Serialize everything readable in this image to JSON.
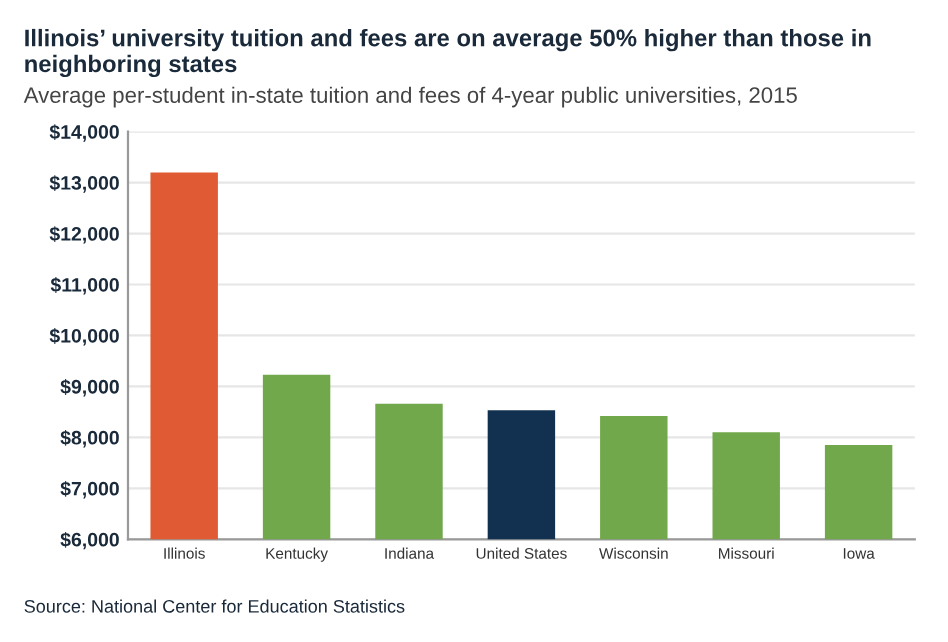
{
  "chart_data": {
    "type": "bar",
    "title": "Illinois’ university tuition and fees are on average 50% higher than those in neighboring states",
    "subtitle": "Average per-student in-state tuition and fees of 4-year public universities, 2015",
    "categories": [
      "Illinois",
      "Kentucky",
      "Indiana",
      "United States",
      "Wisconsin",
      "Missouri",
      "Iowa"
    ],
    "values": [
      13200,
      9230,
      8660,
      8530,
      8420,
      8100,
      7850
    ],
    "colors": [
      "#e05a33",
      "#72a84c",
      "#72a84c",
      "#12304f",
      "#72a84c",
      "#72a84c",
      "#72a84c"
    ],
    "ylim": [
      6000,
      14000
    ],
    "yticks": [
      {
        "value": 6000,
        "label": "$6,000"
      },
      {
        "value": 7000,
        "label": "$7,000"
      },
      {
        "value": 8000,
        "label": "$8,000"
      },
      {
        "value": 9000,
        "label": "$9,000"
      },
      {
        "value": 10000,
        "label": "$10,000"
      },
      {
        "value": 11000,
        "label": "$11,000"
      },
      {
        "value": 12000,
        "label": "$12,000"
      },
      {
        "value": 13000,
        "label": "$13,000"
      },
      {
        "value": 14000,
        "label": "$14,000"
      }
    ],
    "grid": "y",
    "annotations": [
      "Source: National Center for Education Statistics"
    ]
  }
}
